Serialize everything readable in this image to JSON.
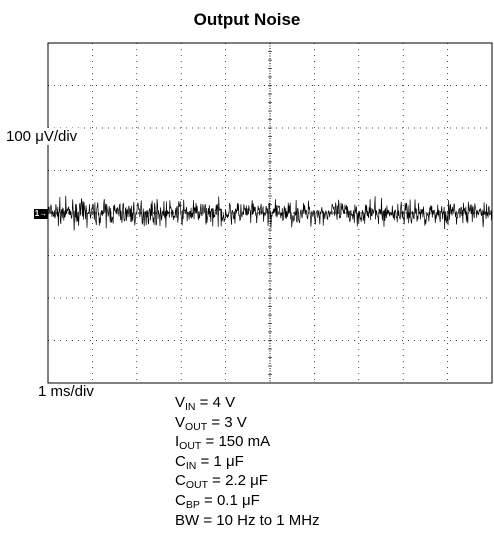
{
  "chart_data": {
    "type": "line",
    "title": "Output Noise",
    "y_scale_label": "100 μV/div",
    "x_scale_label": "1 ms/div",
    "x_divisions": 10,
    "y_divisions": 8,
    "xlim_ms": [
      0,
      10
    ],
    "ylim_uV": [
      -400,
      400
    ],
    "grid": true,
    "channel_marker": "1",
    "series": [
      {
        "trace_level_uV": 0,
        "noise_peak_uV": 70,
        "noise_rms_uV": 20
      }
    ]
  },
  "conditions": [
    {
      "main": "V",
      "sub": "IN",
      "rest": " = 4 V"
    },
    {
      "main": "V",
      "sub": "OUT",
      "rest": " = 3 V"
    },
    {
      "main": "I",
      "sub": "OUT",
      "rest": " = 150 mA"
    },
    {
      "main": "C",
      "sub": "IN",
      "rest": " = 1 μF"
    },
    {
      "main": "C",
      "sub": "OUT",
      "rest": " = 2.2 μF"
    },
    {
      "main": "C",
      "sub": "BP",
      "rest": " = 0.1 μF"
    },
    {
      "main": "BW = 10 Hz to 1 MHz",
      "sub": "",
      "rest": ""
    }
  ]
}
